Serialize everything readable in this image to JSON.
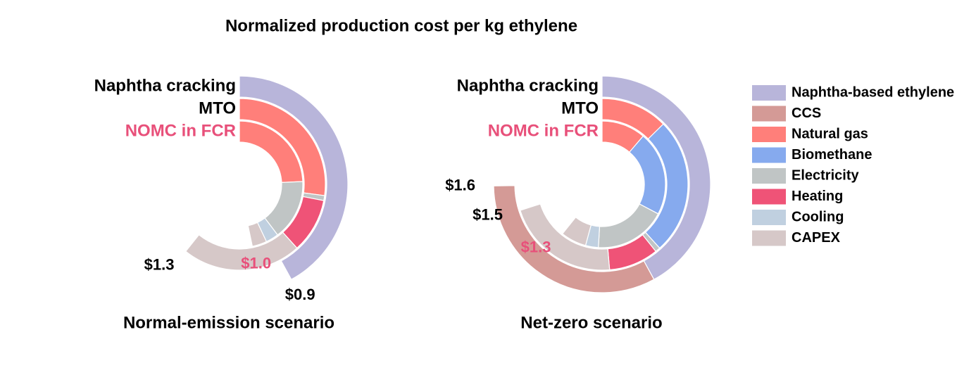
{
  "title": "Normalized production cost per kg ethylene",
  "legend": {
    "items": [
      {
        "name": "Naphtha-based ethylene",
        "color": "#b8b5da"
      },
      {
        "name": "CCS",
        "color": "#d49a96"
      },
      {
        "name": "Natural gas",
        "color": "#ff7f7a"
      },
      {
        "name": "Biomethane",
        "color": "#86aaee"
      },
      {
        "name": "Electricity",
        "color": "#c0c5c5"
      },
      {
        "name": "Heating",
        "color": "#ef5377"
      },
      {
        "name": "Cooling",
        "color": "#c0d0e0"
      },
      {
        "name": "CAPEX",
        "color": "#d6c8c8"
      }
    ]
  },
  "chart_data": [
    {
      "type": "radial_bar",
      "subtitle": "Normal-emission scenario",
      "value_lim": [
        0,
        2.14
      ],
      "rings": [
        {
          "name": "Naphtha cracking",
          "label_color": "#000000",
          "total": 0.9,
          "total_label": "$0.9",
          "segments": [
            {
              "name": "Naphtha-based ethylene",
              "value": 0.9
            }
          ]
        },
        {
          "name": "MTO",
          "label_color": "#000000",
          "total": 1.3,
          "total_label": "$1.3",
          "segments": [
            {
              "name": "Natural gas",
              "value": 0.58
            },
            {
              "name": "Electricity",
              "value": 0.02
            },
            {
              "name": "Heating",
              "value": 0.22
            },
            {
              "name": "CAPEX",
              "value": 0.48
            }
          ]
        },
        {
          "name": "NOMC in FCR",
          "label_color": "#e8507a",
          "total": 1.0,
          "total_label": "$1.0",
          "segments": [
            {
              "name": "Natural gas",
              "value": 0.52
            },
            {
              "name": "Electricity",
              "value": 0.33
            },
            {
              "name": "Cooling",
              "value": 0.07
            },
            {
              "name": "CAPEX",
              "value": 0.08
            }
          ]
        }
      ]
    },
    {
      "type": "radial_bar",
      "subtitle": "Net-zero scenario",
      "value_lim": [
        0,
        2.14
      ],
      "rings": [
        {
          "name": "Naphtha cracking",
          "label_color": "#000000",
          "total": 1.6,
          "total_label": "$1.6",
          "segments": [
            {
              "name": "Naphtha-based ethylene",
              "value": 0.9
            },
            {
              "name": "CCS",
              "value": 0.7
            }
          ]
        },
        {
          "name": "MTO",
          "label_color": "#000000",
          "total": 1.5,
          "total_label": "$1.5",
          "segments": [
            {
              "name": "Natural gas",
              "value": 0.27
            },
            {
              "name": "Biomethane",
              "value": 0.55
            },
            {
              "name": "Electricity",
              "value": 0.02
            },
            {
              "name": "Heating",
              "value": 0.2
            },
            {
              "name": "CAPEX",
              "value": 0.46
            }
          ]
        },
        {
          "name": "NOMC in FCR",
          "label_color": "#e8507a",
          "total": 1.3,
          "total_label": "$1.3",
          "segments": [
            {
              "name": "Natural gas",
              "value": 0.24
            },
            {
              "name": "Biomethane",
              "value": 0.46
            },
            {
              "name": "Electricity",
              "value": 0.39
            },
            {
              "name": "Cooling",
              "value": 0.07
            },
            {
              "name": "CAPEX",
              "value": 0.14
            }
          ]
        }
      ]
    }
  ]
}
